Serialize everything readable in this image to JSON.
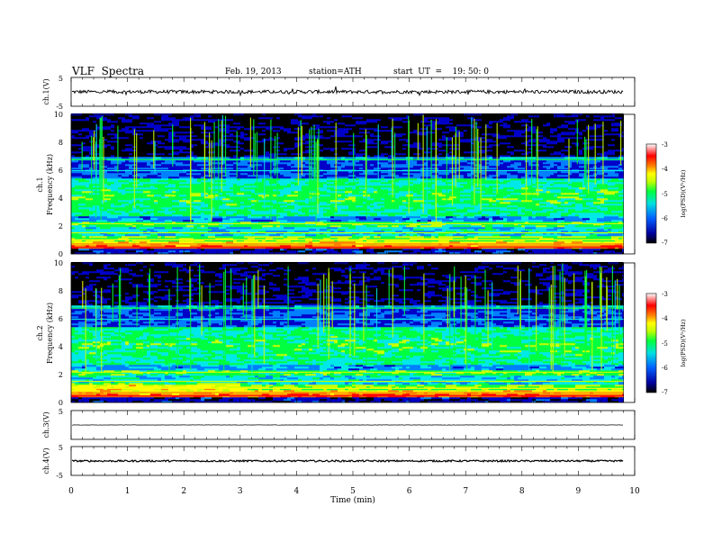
{
  "header": {
    "title": "VLF  Spectra",
    "date": "Feb. 19, 2013",
    "station": "station=ATH",
    "start_ut": "start  UT  =    19: 50: 0"
  },
  "chart_data": [
    {
      "type": "line",
      "panel": "ch1-voltage",
      "ylabel": "ch.1(V)",
      "ylim": [
        -5,
        5
      ],
      "yticks": [
        "-5",
        "5"
      ],
      "baseline": 0.0,
      "noise_amplitude": 0.6
    },
    {
      "type": "heatmap",
      "panel": "ch1-spectrogram",
      "ylabel_channel": "ch.1",
      "ylabel": "Frequency  (kHz)",
      "ylim": [
        0,
        10
      ],
      "yticks": [
        "0",
        "2",
        "4",
        "6",
        "8",
        "10"
      ],
      "colorbar": {
        "label": "log(PSD)(V²/Hz)",
        "range": [
          -7,
          -3
        ],
        "ticks": [
          "-3",
          "-4",
          "-5",
          "-6",
          "-7"
        ]
      }
    },
    {
      "type": "heatmap",
      "panel": "ch2-spectrogram",
      "ylabel_channel": "ch.2",
      "ylabel": "Frequency  (kHz)",
      "ylim": [
        0,
        10
      ],
      "yticks": [
        "0",
        "2",
        "4",
        "6",
        "8",
        "10"
      ],
      "colorbar": {
        "label": "log(PSD)(V²/Hz)",
        "range": [
          -7,
          -3
        ],
        "ticks": [
          "-3",
          "-4",
          "-5",
          "-6",
          "-7"
        ]
      }
    },
    {
      "type": "line",
      "panel": "ch3-voltage",
      "ylabel": "ch.3(V)",
      "ylim": [
        -5,
        5
      ],
      "yticks": [
        "5"
      ],
      "baseline": 0.0,
      "noise_amplitude": 0.05
    },
    {
      "type": "line",
      "panel": "ch4-voltage",
      "ylabel": "ch.4(V)",
      "ylim": [
        -5,
        5
      ],
      "yticks": [
        "-5",
        "5"
      ],
      "baseline": 0.0,
      "noise_amplitude": 0.3
    }
  ],
  "xaxis": {
    "label": "Time  (min)",
    "xlim": [
      0,
      10
    ],
    "data_end": 9.8,
    "ticks": [
      "0",
      "1",
      "2",
      "3",
      "4",
      "5",
      "6",
      "7",
      "8",
      "9",
      "10"
    ]
  },
  "colors": {
    "colormap": [
      "#000000",
      "#0000c8",
      "#0080ff",
      "#00e8e8",
      "#00ff40",
      "#c8ff00",
      "#ffff00",
      "#ff8000",
      "#ff0000",
      "#ffffff"
    ]
  }
}
